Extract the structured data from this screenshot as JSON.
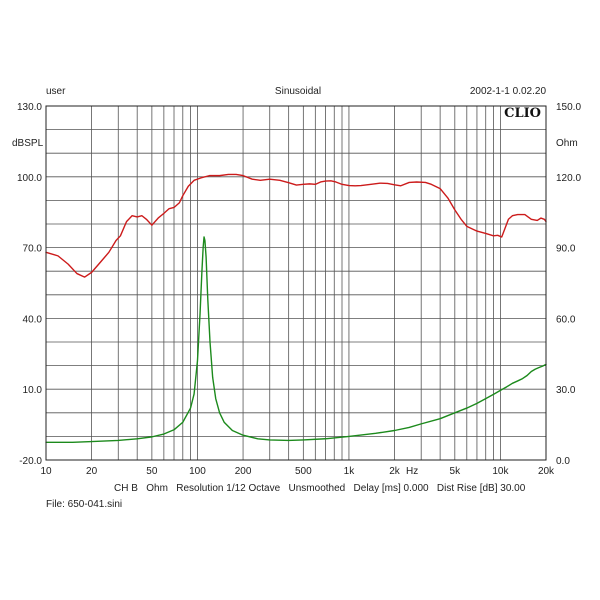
{
  "header": {
    "left": "user",
    "center": "Sinusoidal",
    "right": "2002-1-1 0.02.20",
    "logo": "CLIO"
  },
  "footer": {
    "settings": "CH B   Ohm   Resolution 1/12 Octave   Unsmoothed   Delay [ms] 0.000   Dist Rise [dB] 30.00",
    "file": "File: 650-041.sini"
  },
  "chart_data": {
    "type": "line",
    "xscale": "log",
    "xlim": [
      10,
      20000
    ],
    "ylim_left": [
      -20,
      130
    ],
    "ylim_right": [
      0,
      150
    ],
    "ylabel_left": "dBSPL",
    "ylabel_right": "Ohm",
    "xunit_label": "Hz",
    "grid": true,
    "x_ticks": [
      {
        "v": 10,
        "label": "10"
      },
      {
        "v": 20,
        "label": "20"
      },
      {
        "v": 50,
        "label": "50"
      },
      {
        "v": 100,
        "label": "100"
      },
      {
        "v": 200,
        "label": "200"
      },
      {
        "v": 500,
        "label": "500"
      },
      {
        "v": 1000,
        "label": "1k"
      },
      {
        "v": 2000,
        "label": "2k"
      },
      {
        "v": 5000,
        "label": "5k"
      },
      {
        "v": 10000,
        "label": "10k"
      },
      {
        "v": 20000,
        "label": "20k"
      }
    ],
    "y_ticks_left": [
      "130.0",
      "100.0",
      "70.0",
      "40.0",
      "10.0",
      "-20.0"
    ],
    "y_ticks_left_values": [
      130,
      100,
      70,
      40,
      10,
      -20
    ],
    "y_ticks_right": [
      "150.0",
      "120.0",
      "90.0",
      "60.0",
      "30.0",
      "0.0"
    ],
    "y_ticks_right_values": [
      150,
      120,
      90,
      60,
      30,
      0
    ],
    "series": [
      {
        "axis": "left",
        "color": "#cc1b1b",
        "points": [
          [
            10,
            68
          ],
          [
            12,
            66.5
          ],
          [
            14,
            63
          ],
          [
            16,
            59
          ],
          [
            18,
            57.5
          ],
          [
            20,
            59.5
          ],
          [
            23,
            64
          ],
          [
            26,
            68
          ],
          [
            29,
            73
          ],
          [
            31,
            75
          ],
          [
            34,
            81
          ],
          [
            37,
            83.5
          ],
          [
            40,
            83
          ],
          [
            43,
            83.5
          ],
          [
            46,
            82
          ],
          [
            50,
            79.5
          ],
          [
            55,
            82.5
          ],
          [
            60,
            84.5
          ],
          [
            65,
            86.5
          ],
          [
            70,
            87
          ],
          [
            76,
            89
          ],
          [
            80,
            92
          ],
          [
            87,
            96
          ],
          [
            95,
            98.5
          ],
          [
            105,
            99.5
          ],
          [
            120,
            100.5
          ],
          [
            140,
            100.5
          ],
          [
            160,
            101
          ],
          [
            180,
            101
          ],
          [
            200,
            100.5
          ],
          [
            230,
            99
          ],
          [
            260,
            98.5
          ],
          [
            300,
            99
          ],
          [
            350,
            98.5
          ],
          [
            400,
            97.5
          ],
          [
            450,
            96.5
          ],
          [
            500,
            96.8
          ],
          [
            550,
            97
          ],
          [
            600,
            96.8
          ],
          [
            650,
            97.8
          ],
          [
            700,
            98.2
          ],
          [
            760,
            98.3
          ],
          [
            820,
            97.8
          ],
          [
            900,
            96.8
          ],
          [
            1000,
            96.3
          ],
          [
            1100,
            96.2
          ],
          [
            1200,
            96.3
          ],
          [
            1400,
            96.8
          ],
          [
            1600,
            97.3
          ],
          [
            1800,
            97.2
          ],
          [
            2000,
            96.6
          ],
          [
            2200,
            96.2
          ],
          [
            2500,
            97.6
          ],
          [
            2800,
            97.8
          ],
          [
            3200,
            97.6
          ],
          [
            3500,
            96.8
          ],
          [
            4000,
            95
          ],
          [
            4500,
            91
          ],
          [
            5000,
            86
          ],
          [
            5500,
            82
          ],
          [
            6000,
            79
          ],
          [
            7000,
            77
          ],
          [
            8000,
            76
          ],
          [
            9000,
            75
          ],
          [
            9600,
            75.2
          ],
          [
            10200,
            74.5
          ],
          [
            10700,
            78
          ],
          [
            11300,
            82
          ],
          [
            12000,
            83.5
          ],
          [
            13000,
            84
          ],
          [
            14500,
            84
          ],
          [
            16000,
            82
          ],
          [
            17500,
            81.5
          ],
          [
            18500,
            82.5
          ],
          [
            19500,
            82
          ],
          [
            20000,
            81
          ]
        ]
      },
      {
        "axis": "right",
        "color": "#1c8a1c",
        "points": [
          [
            10,
            7.5
          ],
          [
            15,
            7.5
          ],
          [
            20,
            7.8
          ],
          [
            30,
            8.3
          ],
          [
            40,
            9
          ],
          [
            50,
            9.8
          ],
          [
            60,
            11
          ],
          [
            70,
            12.8
          ],
          [
            80,
            16
          ],
          [
            90,
            22
          ],
          [
            95,
            28
          ],
          [
            100,
            42
          ],
          [
            104,
            62
          ],
          [
            107,
            80
          ],
          [
            109,
            90
          ],
          [
            110.5,
            94.5
          ],
          [
            112,
            93
          ],
          [
            114,
            86
          ],
          [
            117,
            68
          ],
          [
            121,
            50
          ],
          [
            126,
            35
          ],
          [
            132,
            26
          ],
          [
            140,
            20
          ],
          [
            150,
            16
          ],
          [
            170,
            12.5
          ],
          [
            200,
            10.5
          ],
          [
            250,
            9
          ],
          [
            300,
            8.5
          ],
          [
            400,
            8.3
          ],
          [
            500,
            8.5
          ],
          [
            700,
            9
          ],
          [
            1000,
            10
          ],
          [
            1500,
            11.3
          ],
          [
            2000,
            12.5
          ],
          [
            2500,
            13.8
          ],
          [
            3000,
            15.3
          ],
          [
            4000,
            17.5
          ],
          [
            5000,
            20
          ],
          [
            6000,
            22
          ],
          [
            7000,
            24
          ],
          [
            8000,
            26
          ],
          [
            9000,
            27.8
          ],
          [
            10000,
            29.5
          ],
          [
            11000,
            31
          ],
          [
            12000,
            32.5
          ],
          [
            13000,
            33.5
          ],
          [
            14000,
            34.5
          ],
          [
            15000,
            35.8
          ],
          [
            16000,
            37.5
          ],
          [
            17000,
            38.5
          ],
          [
            18000,
            39.2
          ],
          [
            19000,
            39.8
          ],
          [
            20000,
            40.5
          ]
        ]
      }
    ]
  }
}
